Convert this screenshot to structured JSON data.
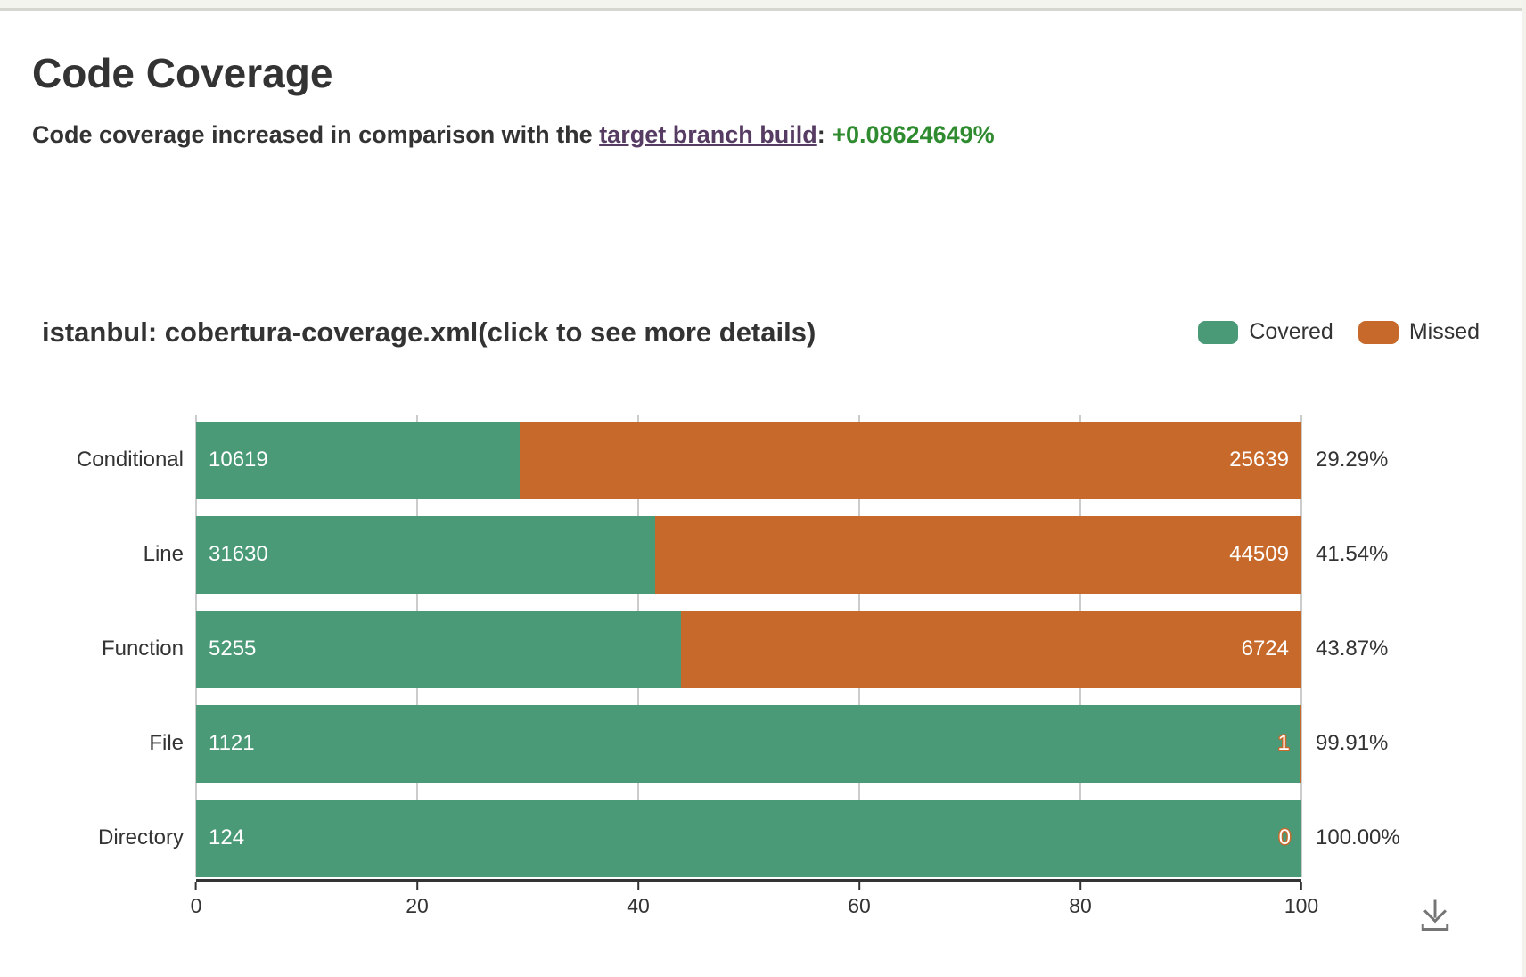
{
  "page": {
    "title": "Code Coverage",
    "subtitle_prefix": "Code coverage increased in comparison with the ",
    "subtitle_link": "target branch build",
    "subtitle_separator": ": ",
    "subtitle_delta": "+0.08624649%"
  },
  "colors": {
    "covered": "#4a9a77",
    "missed": "#c7692a",
    "link": "#563b62",
    "delta_positive": "#2f8b2f",
    "axis": "#333333",
    "gridline": "#cccccc",
    "download_icon": "#757575"
  },
  "chart": {
    "title": "istanbul: cobertura-coverage.xml(click to see more details)",
    "legend": [
      {
        "label": "Covered",
        "color": "#4a9a77"
      },
      {
        "label": "Missed",
        "color": "#c7692a"
      }
    ],
    "rows": [
      {
        "label": "Conditional",
        "covered_label": "10619",
        "missed_label": "25639",
        "covered_pct": 29.29,
        "missed_pct": 70.71,
        "percent_label": "29.29%"
      },
      {
        "label": "Line",
        "covered_label": "31630",
        "missed_label": "44509",
        "covered_pct": 41.54,
        "missed_pct": 58.46,
        "percent_label": "41.54%"
      },
      {
        "label": "Function",
        "covered_label": "5255",
        "missed_label": "6724",
        "covered_pct": 43.87,
        "missed_pct": 56.13,
        "percent_label": "43.87%"
      },
      {
        "label": "File",
        "covered_label": "1121",
        "missed_label": "",
        "missed_outlined_label": "1",
        "covered_pct": 99.91,
        "missed_pct": 0.09,
        "percent_label": "99.91%"
      },
      {
        "label": "Directory",
        "covered_label": "124",
        "missed_label": "",
        "missed_outlined_label": "0",
        "covered_pct": 100,
        "missed_pct": 0,
        "percent_label": "100.00%"
      }
    ],
    "x_ticks": [
      {
        "label": "0",
        "pct": 0
      },
      {
        "label": "20",
        "pct": 20
      },
      {
        "label": "40",
        "pct": 40
      },
      {
        "label": "60",
        "pct": 60
      },
      {
        "label": "80",
        "pct": 80
      },
      {
        "label": "100",
        "pct": 100
      }
    ]
  },
  "chart_data": {
    "type": "bar",
    "orientation": "horizontal",
    "stacked": true,
    "grid": true,
    "title": "istanbul: cobertura-coverage.xml(click to see more details)",
    "categories": [
      "Conditional",
      "Line",
      "Function",
      "File",
      "Directory"
    ],
    "series": [
      {
        "name": "Covered",
        "color": "#4a9a77",
        "values": [
          10619,
          31630,
          5255,
          1121,
          124
        ]
      },
      {
        "name": "Missed",
        "color": "#c7692a",
        "values": [
          25639,
          44509,
          6724,
          1,
          0
        ]
      }
    ],
    "coverage_percent": [
      29.29,
      41.54,
      43.87,
      99.91,
      100.0
    ],
    "percent_labels": [
      "29.29%",
      "41.54%",
      "43.87%",
      "99.91%",
      "100.00%"
    ],
    "x_axis": {
      "min": 0,
      "max": 100,
      "ticks": [
        0,
        20,
        40,
        60,
        80,
        100
      ],
      "unit": "percent of total"
    },
    "legend_position": "top-right"
  }
}
